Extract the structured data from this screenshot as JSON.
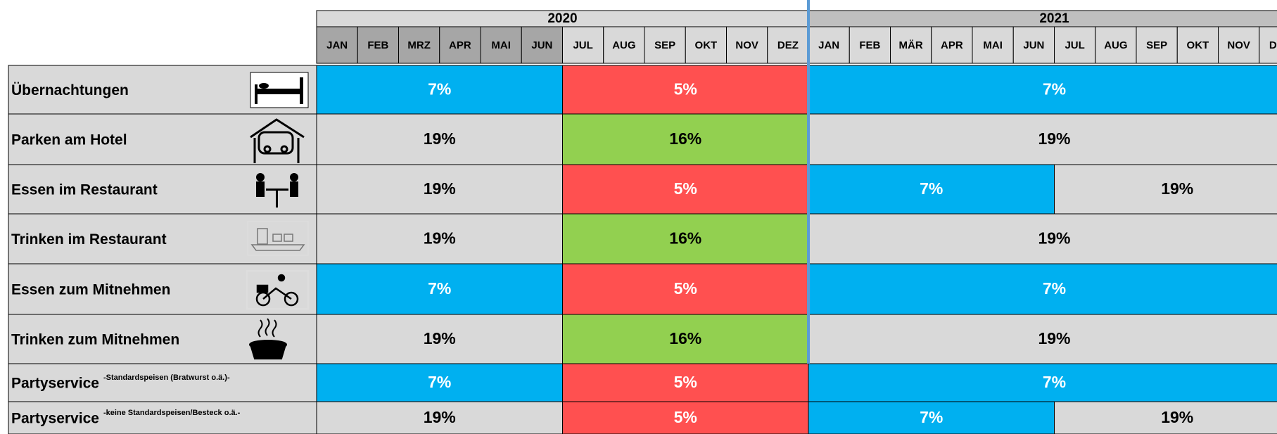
{
  "years": [
    "2020",
    "2021"
  ],
  "months": [
    "JAN",
    "FEB",
    "MRZ",
    "APR",
    "MAI",
    "JUN",
    "JUL",
    "AUG",
    "SEP",
    "OKT",
    "NOV",
    "DEZ",
    "JAN",
    "FEB",
    "MÄR",
    "APR",
    "MAI",
    "JUN",
    "JUL",
    "AUG",
    "SEP",
    "OKT",
    "NOV",
    "DEZ"
  ],
  "rows": [
    {
      "label": "Übernachtungen",
      "segments": [
        "7%",
        "5%",
        "7%"
      ]
    },
    {
      "label": "Parken am Hotel",
      "segments": [
        "19%",
        "16%",
        "19%"
      ]
    },
    {
      "label": "Essen im Restaurant",
      "segments": [
        "19%",
        "5%",
        "7%",
        "19%"
      ]
    },
    {
      "label": "Trinken im Restaurant",
      "segments": [
        "19%",
        "16%",
        "19%"
      ]
    },
    {
      "label": "Essen zum Mitnehmen",
      "segments": [
        "7%",
        "5%",
        "7%"
      ]
    },
    {
      "label": "Trinken zum Mitnehmen",
      "segments": [
        "19%",
        "16%",
        "19%"
      ]
    },
    {
      "label": "Partyservice",
      "note": "-Standardspeisen (Bratwurst o.ä.)-",
      "segments": [
        "7%",
        "5%",
        "7%"
      ]
    },
    {
      "label": "Partyservice",
      "note": "-keine Standardspeisen/Besteck o.ä.-",
      "segments": [
        "19%",
        "5%",
        "7%",
        "19%"
      ]
    }
  ]
}
